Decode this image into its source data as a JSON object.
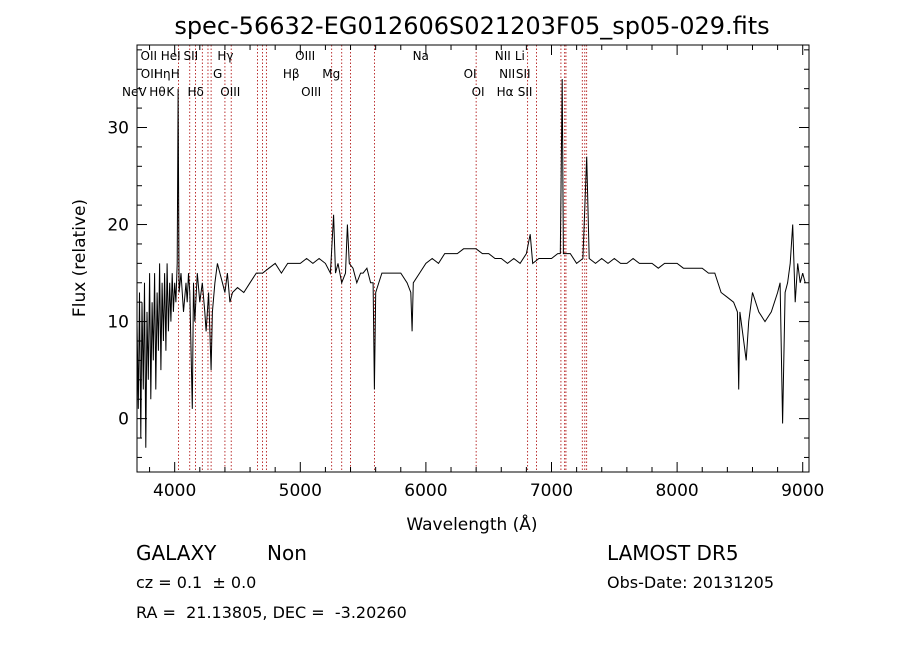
{
  "chart_data": {
    "type": "line",
    "title": "spec-56632-EG012606S021203F05_sp05-029.fits",
    "xlabel": "Wavelength (Å)",
    "ylabel": "Flux (relative)",
    "xlim": [
      3700,
      9050
    ],
    "ylim": [
      -5.5,
      38.5
    ],
    "xticks": [
      4000,
      5000,
      6000,
      7000,
      8000,
      9000
    ],
    "yticks": [
      0,
      10,
      20,
      30
    ],
    "series": [
      {
        "values": [
          [
            3700,
            10
          ],
          [
            3710,
            1
          ],
          [
            3720,
            13
          ],
          [
            3730,
            -2
          ],
          [
            3740,
            12
          ],
          [
            3750,
            3
          ],
          [
            3760,
            14
          ],
          [
            3770,
            -3
          ],
          [
            3780,
            11
          ],
          [
            3790,
            4
          ],
          [
            3800,
            15
          ],
          [
            3810,
            2
          ],
          [
            3820,
            12
          ],
          [
            3830,
            6
          ],
          [
            3840,
            15
          ],
          [
            3850,
            3
          ],
          [
            3860,
            13
          ],
          [
            3870,
            7
          ],
          [
            3880,
            16
          ],
          [
            3890,
            5
          ],
          [
            3900,
            14
          ],
          [
            3910,
            8
          ],
          [
            3920,
            15
          ],
          [
            3930,
            7
          ],
          [
            3940,
            16
          ],
          [
            3950,
            9
          ],
          [
            3960,
            14
          ],
          [
            3970,
            10
          ],
          [
            3980,
            15
          ],
          [
            3990,
            11
          ],
          [
            4000,
            14
          ],
          [
            4010,
            12
          ],
          [
            4020,
            16
          ],
          [
            4027,
            34
          ],
          [
            4035,
            13
          ],
          [
            4050,
            15
          ],
          [
            4070,
            11
          ],
          [
            4090,
            14
          ],
          [
            4100,
            12
          ],
          [
            4110,
            15
          ],
          [
            4120,
            13
          ],
          [
            4140,
            1
          ],
          [
            4150,
            14
          ],
          [
            4160,
            10
          ],
          [
            4180,
            15
          ],
          [
            4200,
            12
          ],
          [
            4220,
            14
          ],
          [
            4240,
            11
          ],
          [
            4250,
            9
          ],
          [
            4270,
            13
          ],
          [
            4290,
            5
          ],
          [
            4300,
            11
          ],
          [
            4320,
            14
          ],
          [
            4340,
            16
          ],
          [
            4360,
            15
          ],
          [
            4380,
            14
          ],
          [
            4400,
            13
          ],
          [
            4420,
            15
          ],
          [
            4440,
            12
          ],
          [
            4460,
            13
          ],
          [
            4500,
            13.5
          ],
          [
            4550,
            13
          ],
          [
            4600,
            14
          ],
          [
            4650,
            15
          ],
          [
            4700,
            15
          ],
          [
            4750,
            15.5
          ],
          [
            4800,
            16
          ],
          [
            4850,
            15
          ],
          [
            4900,
            16
          ],
          [
            4950,
            16
          ],
          [
            5000,
            16
          ],
          [
            5050,
            16.5
          ],
          [
            5100,
            16
          ],
          [
            5150,
            16.5
          ],
          [
            5200,
            16
          ],
          [
            5240,
            15
          ],
          [
            5265,
            21
          ],
          [
            5280,
            15
          ],
          [
            5300,
            16
          ],
          [
            5330,
            14
          ],
          [
            5360,
            15
          ],
          [
            5375,
            20
          ],
          [
            5390,
            16
          ],
          [
            5420,
            15.5
          ],
          [
            5450,
            14
          ],
          [
            5480,
            15
          ],
          [
            5500,
            15
          ],
          [
            5530,
            15.5
          ],
          [
            5560,
            14
          ],
          [
            5580,
            14
          ],
          [
            5590,
            3
          ],
          [
            5600,
            13
          ],
          [
            5650,
            15
          ],
          [
            5700,
            15
          ],
          [
            5750,
            15
          ],
          [
            5800,
            15
          ],
          [
            5850,
            14
          ],
          [
            5880,
            13
          ],
          [
            5890,
            9
          ],
          [
            5900,
            14
          ],
          [
            5950,
            15
          ],
          [
            6000,
            16
          ],
          [
            6050,
            16.5
          ],
          [
            6100,
            16
          ],
          [
            6150,
            17
          ],
          [
            6200,
            17
          ],
          [
            6250,
            17
          ],
          [
            6300,
            17.5
          ],
          [
            6350,
            17.5
          ],
          [
            6400,
            17.5
          ],
          [
            6450,
            17
          ],
          [
            6500,
            17
          ],
          [
            6550,
            16.5
          ],
          [
            6600,
            16.5
          ],
          [
            6650,
            16
          ],
          [
            6700,
            16.5
          ],
          [
            6750,
            16
          ],
          [
            6800,
            17
          ],
          [
            6830,
            19
          ],
          [
            6850,
            16
          ],
          [
            6900,
            16.5
          ],
          [
            6950,
            16.5
          ],
          [
            7000,
            16.5
          ],
          [
            7050,
            17
          ],
          [
            7070,
            17
          ],
          [
            7085,
            35
          ],
          [
            7095,
            17
          ],
          [
            7120,
            17
          ],
          [
            7150,
            17
          ],
          [
            7200,
            16
          ],
          [
            7250,
            16.5
          ],
          [
            7280,
            27
          ],
          [
            7300,
            16.5
          ],
          [
            7350,
            16
          ],
          [
            7400,
            16.5
          ],
          [
            7450,
            16
          ],
          [
            7500,
            16.5
          ],
          [
            7550,
            16
          ],
          [
            7600,
            16
          ],
          [
            7650,
            16.5
          ],
          [
            7700,
            16
          ],
          [
            7750,
            16
          ],
          [
            7800,
            16
          ],
          [
            7850,
            15.5
          ],
          [
            7900,
            16
          ],
          [
            7950,
            16
          ],
          [
            8000,
            16
          ],
          [
            8050,
            15.5
          ],
          [
            8100,
            15.5
          ],
          [
            8150,
            15.5
          ],
          [
            8200,
            15.5
          ],
          [
            8250,
            15
          ],
          [
            8300,
            15
          ],
          [
            8350,
            13
          ],
          [
            8400,
            12.5
          ],
          [
            8450,
            12
          ],
          [
            8480,
            11
          ],
          [
            8490,
            3
          ],
          [
            8500,
            11
          ],
          [
            8530,
            8
          ],
          [
            8550,
            6
          ],
          [
            8570,
            10
          ],
          [
            8600,
            13
          ],
          [
            8650,
            11
          ],
          [
            8700,
            10
          ],
          [
            8750,
            11
          ],
          [
            8800,
            13
          ],
          [
            8820,
            14
          ],
          [
            8840,
            -0.5
          ],
          [
            8860,
            13
          ],
          [
            8880,
            14
          ],
          [
            8900,
            16
          ],
          [
            8920,
            20
          ],
          [
            8940,
            12
          ],
          [
            8960,
            16
          ],
          [
            8980,
            14
          ],
          [
            9000,
            15
          ],
          [
            9020,
            14
          ]
        ]
      }
    ],
    "emission_lines": [
      {
        "label": "NeV",
        "x": 3426,
        "row": 3
      },
      {
        "label": "OII",
        "x": 3728,
        "row": 1
      },
      {
        "label": "OII",
        "x": 3730,
        "row": 2
      },
      {
        "label": "Hθ",
        "x": 3798,
        "row": 3
      },
      {
        "label": "Hη",
        "x": 3835,
        "row": 2
      },
      {
        "label": "HeI",
        "x": 3889,
        "row": 1
      },
      {
        "label": "H",
        "x": 3969,
        "row": 2
      },
      {
        "label": "K",
        "x": 3934,
        "row": 3
      },
      {
        "label": "SII",
        "x": 4070,
        "row": 1
      },
      {
        "label": "Hδ",
        "x": 4102,
        "row": 3
      },
      {
        "label": "Hγ",
        "x": 4340,
        "row": 1
      },
      {
        "label": "G",
        "x": 4305,
        "row": 2
      },
      {
        "label": "OIII",
        "x": 4363,
        "row": 3
      },
      {
        "label": "OIII",
        "x": 4959,
        "row": 1
      },
      {
        "label": "Hβ",
        "x": 4861,
        "row": 2
      },
      {
        "label": "OIII",
        "x": 5007,
        "row": 3
      },
      {
        "label": "Mg",
        "x": 5175,
        "row": 2
      },
      {
        "label": "Na",
        "x": 5894,
        "row": 1
      },
      {
        "label": "OI",
        "x": 6300,
        "row": 2
      },
      {
        "label": "OI",
        "x": 6364,
        "row": 3
      },
      {
        "label": "NII",
        "x": 6548,
        "row": 1
      },
      {
        "label": "NII",
        "x": 6583,
        "row": 2
      },
      {
        "label": "Hα",
        "x": 6563,
        "row": 3
      },
      {
        "label": "Li",
        "x": 6708,
        "row": 1
      },
      {
        "label": "SII",
        "x": 6716,
        "row": 2
      },
      {
        "label": "SII",
        "x": 6731,
        "row": 3
      }
    ],
    "line_markers_x": [
      4030,
      4120,
      4165,
      4220,
      4265,
      4290,
      4400,
      4450,
      4660,
      4700,
      4730,
      5250,
      5330,
      5400,
      5590,
      6400,
      6810,
      6880,
      7075,
      7105,
      7115,
      7245,
      7265,
      7280
    ],
    "legend": "none",
    "grid": false
  },
  "info": {
    "class_label": "GALAXY",
    "subclass_label": "Non",
    "cz_text": "cz = 0.1  ± 0.0",
    "radec_text": "RA =  21.13805, DEC =  -3.20260",
    "survey": "LAMOST DR5",
    "obs_date": "Obs-Date: 20131205"
  },
  "colors": {
    "spectrum": "#000000",
    "marker": "#aa0000",
    "background": "#ffffff"
  }
}
